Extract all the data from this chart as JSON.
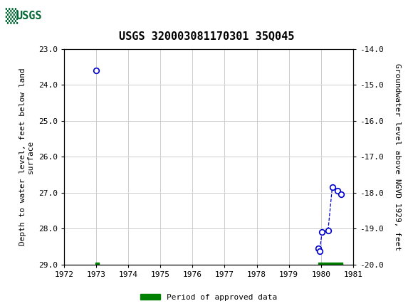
{
  "title": "USGS 320003081170301 35Q045",
  "ylabel_left": "Depth to water level, feet below land\nsurface",
  "ylabel_right": "Groundwater level above NGVD 1929, feet",
  "xlim": [
    1972,
    1981
  ],
  "ylim_left": [
    29.0,
    23.0
  ],
  "ylim_right": [
    -20.0,
    -14.0
  ],
  "xticks": [
    1972,
    1973,
    1974,
    1975,
    1976,
    1977,
    1978,
    1979,
    1980,
    1981
  ],
  "yticks_left": [
    23.0,
    24.0,
    25.0,
    26.0,
    27.0,
    28.0,
    29.0
  ],
  "yticks_right": [
    -14.0,
    -15.0,
    -16.0,
    -17.0,
    -18.0,
    -19.0,
    -20.0
  ],
  "isolated_x": [
    1973.0
  ],
  "isolated_y": [
    23.6
  ],
  "connected_x": [
    1979.92,
    1979.96,
    1980.03,
    1980.22,
    1980.35,
    1980.52,
    1980.62
  ],
  "connected_y": [
    28.55,
    28.62,
    28.1,
    28.05,
    26.85,
    26.95,
    27.05
  ],
  "approved_periods": [
    {
      "start": 1972.98,
      "end": 1973.08
    },
    {
      "start": 1979.92,
      "end": 1980.68
    }
  ],
  "approved_bar_y": 29.0,
  "approved_bar_thickness": 0.13,
  "point_color": "#0000cc",
  "line_color": "#0000cc",
  "approved_color": "#008000",
  "background_color": "#ffffff",
  "header_color": "#006633",
  "grid_color": "#cccccc",
  "title_fontsize": 11,
  "axis_label_fontsize": 8,
  "tick_fontsize": 8,
  "legend_fontsize": 8
}
